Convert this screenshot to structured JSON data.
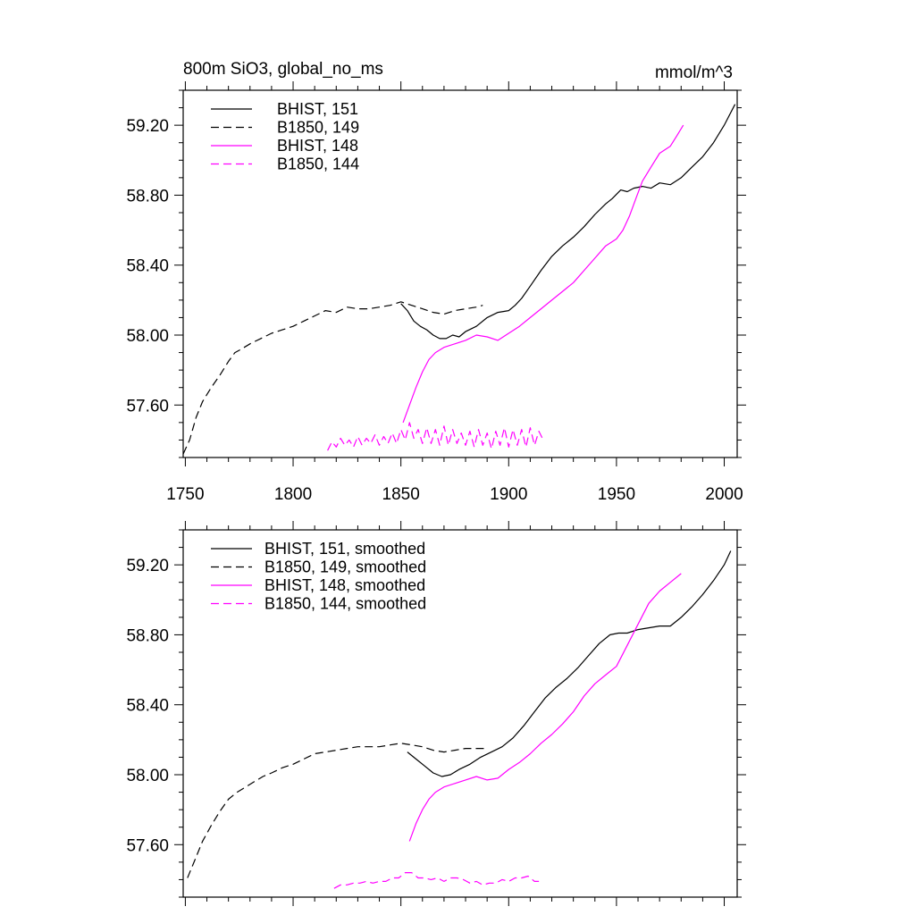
{
  "chart_data": [
    {
      "type": "line",
      "title_left": "800m SiO3, global_no_ms",
      "title_right": "mmol/m^3",
      "xlabel": "",
      "ylabel": "",
      "xlim": [
        1749,
        2006
      ],
      "ylim": [
        57.3,
        59.4
      ],
      "xticks": [
        1750,
        1800,
        1850,
        1900,
        1950,
        2000
      ],
      "xtick_labels": [
        "1750",
        "1800",
        "1850",
        "1900",
        "1950",
        "2000"
      ],
      "yticks": [
        57.6,
        58.0,
        58.4,
        58.8,
        59.2
      ],
      "ytick_labels": [
        "57.60",
        "58.00",
        "58.40",
        "58.80",
        "59.20"
      ],
      "grid": false,
      "legend_position": "top-left",
      "series": [
        {
          "name": "BHIST, 151",
          "color": "#000000",
          "dash": "solid",
          "x": [
            1850,
            1853,
            1856,
            1859,
            1862,
            1865,
            1868,
            1871,
            1874,
            1877,
            1880,
            1885,
            1890,
            1895,
            1900,
            1903,
            1906,
            1910,
            1915,
            1920,
            1925,
            1930,
            1935,
            1940,
            1945,
            1948,
            1952,
            1955,
            1958,
            1962,
            1966,
            1970,
            1975,
            1980,
            1985,
            1990,
            1995,
            2000,
            2005
          ],
          "y": [
            58.18,
            58.14,
            58.08,
            58.05,
            58.03,
            58.0,
            57.98,
            57.98,
            58.0,
            57.99,
            58.02,
            58.05,
            58.1,
            58.13,
            58.14,
            58.17,
            58.21,
            58.28,
            58.37,
            58.45,
            58.51,
            58.56,
            58.62,
            58.69,
            58.75,
            58.78,
            58.83,
            58.82,
            58.84,
            58.85,
            58.84,
            58.87,
            58.86,
            58.9,
            58.96,
            59.02,
            59.1,
            59.2,
            59.32
          ]
        },
        {
          "name": "B1850, 149",
          "color": "#000000",
          "dash": "dashed",
          "x": [
            1749,
            1752,
            1755,
            1758,
            1762,
            1766,
            1770,
            1773,
            1776,
            1780,
            1785,
            1790,
            1795,
            1800,
            1805,
            1810,
            1815,
            1820,
            1825,
            1830,
            1835,
            1840,
            1845,
            1850,
            1855,
            1860,
            1865,
            1870,
            1875,
            1880,
            1885,
            1888
          ],
          "y": [
            57.32,
            57.4,
            57.53,
            57.62,
            57.7,
            57.77,
            57.85,
            57.9,
            57.92,
            57.95,
            57.98,
            58.01,
            58.03,
            58.05,
            58.08,
            58.11,
            58.14,
            58.13,
            58.16,
            58.15,
            58.15,
            58.16,
            58.17,
            58.19,
            58.17,
            58.15,
            58.13,
            58.12,
            58.14,
            58.15,
            58.16,
            58.17
          ]
        },
        {
          "name": "BHIST, 148",
          "color": "#ff00ff",
          "dash": "solid",
          "x": [
            1851,
            1854,
            1857,
            1860,
            1863,
            1866,
            1870,
            1875,
            1880,
            1885,
            1890,
            1895,
            1900,
            1905,
            1910,
            1915,
            1920,
            1925,
            1930,
            1935,
            1940,
            1945,
            1950,
            1953,
            1956,
            1959,
            1962,
            1966,
            1970,
            1975,
            1978,
            1981
          ],
          "y": [
            57.5,
            57.6,
            57.7,
            57.79,
            57.86,
            57.9,
            57.93,
            57.95,
            57.97,
            58.0,
            57.99,
            57.97,
            58.01,
            58.05,
            58.1,
            58.15,
            58.2,
            58.25,
            58.3,
            58.37,
            58.44,
            58.51,
            58.55,
            58.6,
            58.68,
            58.78,
            58.88,
            58.96,
            59.04,
            59.08,
            59.14,
            59.2
          ]
        },
        {
          "name": "B1850, 144",
          "color": "#ff00ff",
          "dash": "dashed",
          "x": [
            1816,
            1818,
            1820,
            1822,
            1824,
            1826,
            1828,
            1830,
            1832,
            1834,
            1836,
            1838,
            1840,
            1842,
            1844,
            1846,
            1848,
            1850,
            1852,
            1854,
            1856,
            1858,
            1860,
            1862,
            1864,
            1866,
            1868,
            1870,
            1872,
            1874,
            1876,
            1878,
            1880,
            1882,
            1884,
            1886,
            1888,
            1890,
            1892,
            1894,
            1896,
            1898,
            1900,
            1902,
            1904,
            1906,
            1908,
            1910,
            1912,
            1914,
            1916
          ],
          "y": [
            57.34,
            57.39,
            57.36,
            57.41,
            57.37,
            57.4,
            57.36,
            57.42,
            57.37,
            57.41,
            57.38,
            57.43,
            57.37,
            57.42,
            57.38,
            57.44,
            57.38,
            57.46,
            57.4,
            57.5,
            57.41,
            57.46,
            57.38,
            57.47,
            57.38,
            57.46,
            57.37,
            57.48,
            57.37,
            57.46,
            57.38,
            57.44,
            57.37,
            57.45,
            57.36,
            57.46,
            57.37,
            57.44,
            57.35,
            57.45,
            57.37,
            57.47,
            57.36,
            57.46,
            57.37,
            57.46,
            57.36,
            57.47,
            57.37,
            57.45,
            57.4
          ]
        }
      ]
    },
    {
      "type": "line",
      "title_left": "",
      "title_right": "",
      "xlabel": "",
      "ylabel": "",
      "xlim": [
        1749,
        2006
      ],
      "ylim": [
        57.3,
        59.4
      ],
      "xticks": [
        1750,
        1800,
        1850,
        1900,
        1950,
        2000
      ],
      "xtick_labels": [],
      "yticks": [
        57.6,
        58.0,
        58.4,
        58.8,
        59.2
      ],
      "ytick_labels": [
        "57.60",
        "58.00",
        "58.40",
        "58.80",
        "59.20"
      ],
      "grid": false,
      "legend_position": "top-left",
      "series": [
        {
          "name": "BHIST, 151, smoothed",
          "color": "#000000",
          "dash": "solid",
          "x": [
            1853,
            1857,
            1861,
            1865,
            1869,
            1873,
            1877,
            1882,
            1887,
            1892,
            1897,
            1902,
            1907,
            1912,
            1917,
            1922,
            1927,
            1932,
            1937,
            1942,
            1947,
            1951,
            1955,
            1960,
            1965,
            1970,
            1975,
            1980,
            1985,
            1990,
            1995,
            2000,
            2003
          ],
          "y": [
            58.13,
            58.09,
            58.05,
            58.01,
            57.99,
            58.0,
            58.03,
            58.06,
            58.1,
            58.13,
            58.16,
            58.21,
            58.28,
            58.36,
            58.44,
            58.5,
            58.55,
            58.61,
            58.68,
            58.75,
            58.8,
            58.81,
            58.81,
            58.83,
            58.84,
            58.85,
            58.85,
            58.9,
            58.96,
            59.03,
            59.11,
            59.2,
            59.28
          ]
        },
        {
          "name": "B1850, 149, smoothed",
          "color": "#000000",
          "dash": "dashed",
          "x": [
            1751,
            1754,
            1758,
            1762,
            1766,
            1770,
            1774,
            1778,
            1782,
            1786,
            1790,
            1795,
            1800,
            1805,
            1810,
            1815,
            1820,
            1825,
            1830,
            1835,
            1840,
            1845,
            1850,
            1855,
            1860,
            1865,
            1870,
            1875,
            1880,
            1885,
            1889
          ],
          "y": [
            57.41,
            57.5,
            57.62,
            57.71,
            57.79,
            57.86,
            57.9,
            57.93,
            57.96,
            57.99,
            58.01,
            58.04,
            58.06,
            58.09,
            58.12,
            58.13,
            58.14,
            58.15,
            58.16,
            58.16,
            58.16,
            58.17,
            58.18,
            58.17,
            58.16,
            58.14,
            58.13,
            58.14,
            58.15,
            58.15,
            58.15
          ]
        },
        {
          "name": "BHIST, 148, smoothed",
          "color": "#ff00ff",
          "dash": "solid",
          "x": [
            1854,
            1857,
            1860,
            1863,
            1866,
            1870,
            1875,
            1880,
            1885,
            1890,
            1895,
            1900,
            1905,
            1910,
            1915,
            1920,
            1925,
            1930,
            1935,
            1940,
            1945,
            1950,
            1955,
            1960,
            1965,
            1970,
            1975,
            1980
          ],
          "y": [
            57.62,
            57.72,
            57.8,
            57.86,
            57.9,
            57.93,
            57.95,
            57.97,
            57.99,
            57.97,
            57.98,
            58.03,
            58.07,
            58.12,
            58.18,
            58.23,
            58.29,
            58.36,
            58.45,
            58.52,
            58.57,
            58.62,
            58.74,
            58.86,
            58.98,
            59.05,
            59.1,
            59.15
          ]
        },
        {
          "name": "B1850, 144, smoothed",
          "color": "#ff00ff",
          "dash": "dashed",
          "x": [
            1819,
            1822,
            1825,
            1828,
            1831,
            1834,
            1837,
            1840,
            1843,
            1846,
            1849,
            1852,
            1855,
            1858,
            1861,
            1864,
            1867,
            1870,
            1873,
            1876,
            1879,
            1882,
            1885,
            1888,
            1891,
            1894,
            1897,
            1900,
            1903,
            1906,
            1909,
            1912,
            1914
          ],
          "y": [
            57.35,
            57.37,
            57.37,
            57.38,
            57.38,
            57.39,
            57.38,
            57.39,
            57.39,
            57.41,
            57.41,
            57.44,
            57.44,
            57.41,
            57.41,
            57.4,
            57.41,
            57.39,
            57.41,
            57.41,
            57.4,
            57.38,
            57.39,
            57.37,
            57.38,
            57.38,
            57.4,
            57.39,
            57.41,
            57.41,
            57.42,
            57.39,
            57.39
          ]
        }
      ]
    }
  ]
}
